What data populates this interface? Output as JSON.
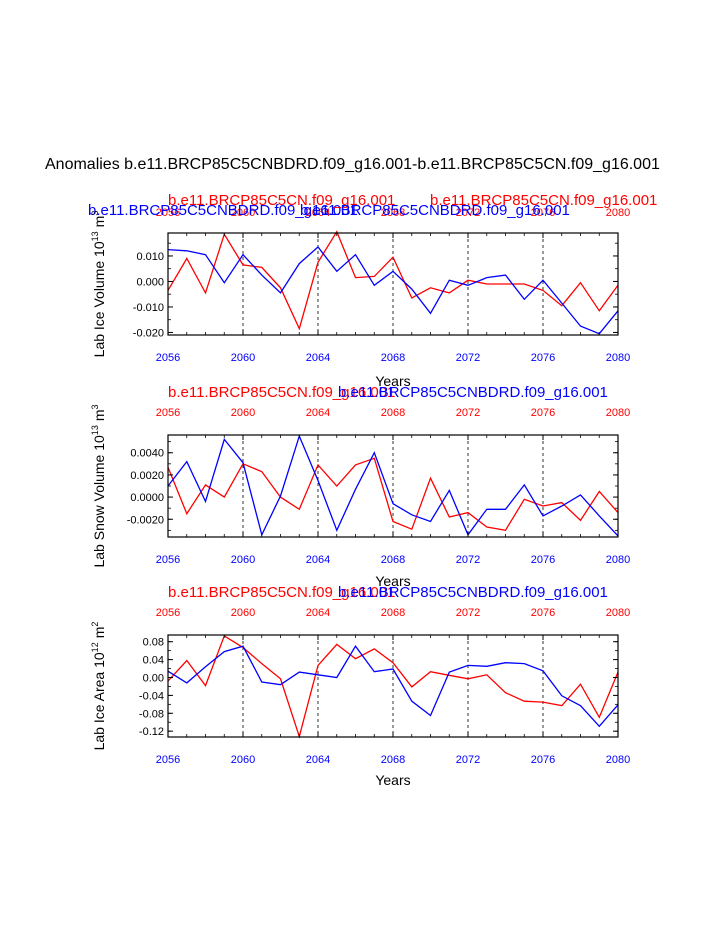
{
  "figure": {
    "title": "Anomalies b.e11.BRCP85C5CNBDRD.f09_g16.001-b.e11.BRCP85C5CN.f09_g16.001"
  },
  "colors": {
    "series_a": "#ff0000",
    "series_b": "#0000ff",
    "axis": "#000000"
  },
  "chart_data": [
    {
      "type": "line",
      "ylabel_text": "Lab Ice Volume 10",
      "ylabel_exp": "13",
      "ylabel_unit": "m",
      "ylabel_unit_exp": "3",
      "xlabel": "",
      "xlim": [
        2056,
        2080
      ],
      "ylim": [
        -0.021,
        0.019
      ],
      "yticks": [
        -0.02,
        -0.01,
        0.0,
        0.01
      ],
      "yticklabels": [
        "-0.020",
        "-0.010",
        "0.000",
        "0.010"
      ],
      "xticks": [
        2056,
        2060,
        2064,
        2068,
        2072,
        2076,
        2080
      ],
      "xticklabels": [
        "2056",
        "2060",
        "2064",
        "2068",
        "2072",
        "2076",
        "2080"
      ],
      "top_legend": [
        {
          "text": "b.e11.BRCP85C5CNBDRD.f09_g16.001",
          "color": "#0000ff"
        },
        {
          "text": "b.e11.BRCP85C5CN.f09_g16.001",
          "color": "#ff0000"
        },
        {
          "text": "b.e11.BRCP85C5CNBDRD.f09_g16.001",
          "color": "#0000ff"
        },
        {
          "text": "b.e11.BRCP85C5CN.f09_g16.001",
          "color": "#ff0000"
        }
      ],
      "x": [
        2056,
        2057,
        2058,
        2059,
        2060,
        2061,
        2062,
        2063,
        2064,
        2065,
        2066,
        2067,
        2068,
        2069,
        2070,
        2071,
        2072,
        2073,
        2074,
        2075,
        2076,
        2077,
        2078,
        2079,
        2080
      ],
      "series": [
        {
          "name": "b.e11.BRCP85C5CN.f09_g16.001",
          "color": "#ff0000",
          "values": [
            -0.0035,
            0.009,
            -0.0045,
            0.0185,
            0.0065,
            0.0055,
            -0.0025,
            -0.0185,
            0.0075,
            0.0195,
            0.0015,
            0.002,
            0.0095,
            -0.0065,
            -0.0025,
            -0.0045,
            0.0005,
            -0.001,
            -0.001,
            -0.001,
            -0.0035,
            -0.0095,
            -0.0005,
            -0.0115,
            -0.0015
          ]
        },
        {
          "name": "b.e11.BRCP85C5CNBDRD.f09_g16.001",
          "color": "#0000ff",
          "values": [
            0.0125,
            0.012,
            0.0105,
            -0.0005,
            0.0105,
            0.0025,
            -0.0045,
            0.007,
            0.0135,
            0.004,
            0.0105,
            -0.0015,
            0.004,
            -0.003,
            -0.0125,
            0.0005,
            -0.0015,
            0.0015,
            0.0025,
            -0.007,
            0.0005,
            -0.0085,
            -0.0175,
            -0.0205,
            -0.0115
          ]
        }
      ]
    },
    {
      "type": "line",
      "ylabel_text": "Lab Snow Volume 10",
      "ylabel_exp": "13",
      "ylabel_unit": "m",
      "ylabel_unit_exp": "3",
      "xlabel": "Years",
      "xlim": [
        2056,
        2080
      ],
      "ylim": [
        -0.0036,
        0.0056
      ],
      "yticks": [
        -0.002,
        0.0,
        0.002,
        0.004
      ],
      "yticklabels": [
        "-0.0020",
        "0.0000",
        "0.0020",
        "0.0040"
      ],
      "xticks": [
        2056,
        2060,
        2064,
        2068,
        2072,
        2076,
        2080
      ],
      "xticklabels": [
        "2056",
        "2060",
        "2064",
        "2068",
        "2072",
        "2076",
        "2080"
      ],
      "top_legend": [
        {
          "text": "b.e11.BRCP85C5CN.f09_g16.001",
          "color": "#ff0000"
        },
        {
          "text": "b.e11.BRCP85C5CNBDRD.f09_g16.001",
          "color": "#0000ff"
        }
      ],
      "x": [
        2056,
        2057,
        2058,
        2059,
        2060,
        2061,
        2062,
        2063,
        2064,
        2065,
        2066,
        2067,
        2068,
        2069,
        2070,
        2071,
        2072,
        2073,
        2074,
        2075,
        2076,
        2077,
        2078,
        2079,
        2080
      ],
      "series": [
        {
          "name": "b.e11.BRCP85C5CN.f09_g16.001",
          "color": "#ff0000",
          "values": [
            0.0027,
            -0.0015,
            0.0011,
            0.0,
            0.003,
            0.0023,
            0.0,
            -0.0011,
            0.0029,
            0.001,
            0.0029,
            0.0035,
            -0.0022,
            -0.0029,
            0.0017,
            -0.0018,
            -0.0014,
            -0.0027,
            -0.003,
            -0.0002,
            -0.0008,
            -0.0005,
            -0.0021,
            0.0005,
            -0.0014
          ]
        },
        {
          "name": "b.e11.BRCP85C5CNBDRD.f09_g16.001",
          "color": "#0000ff",
          "values": [
            0.001,
            0.0032,
            -0.0004,
            0.0052,
            0.0031,
            -0.0034,
            0.0001,
            0.0055,
            0.0015,
            -0.003,
            0.0007,
            0.004,
            -0.0006,
            -0.0016,
            -0.0022,
            0.0006,
            -0.0034,
            -0.0011,
            -0.0011,
            0.0011,
            -0.0017,
            -0.0008,
            0.0002,
            -0.0017,
            -0.0035
          ]
        }
      ]
    },
    {
      "type": "line",
      "ylabel_text": "Lab Ice Area 10",
      "ylabel_exp": "12",
      "ylabel_unit": "m",
      "ylabel_unit_exp": "2",
      "xlabel": "Years",
      "xlim": [
        2056,
        2080
      ],
      "ylim": [
        -0.133,
        0.095
      ],
      "yticks": [
        -0.12,
        -0.08,
        -0.04,
        0.0,
        0.04,
        0.08
      ],
      "yticklabels": [
        "-0.12",
        "-0.08",
        "-0.04",
        "0.00",
        "0.04",
        "0.08"
      ],
      "xticks": [
        2056,
        2060,
        2064,
        2068,
        2072,
        2076,
        2080
      ],
      "xticklabels": [
        "2056",
        "2060",
        "2064",
        "2068",
        "2072",
        "2076",
        "2080"
      ],
      "top_legend": [
        {
          "text": "b.e11.BRCP85C5CN.f09_g16.001",
          "color": "#ff0000"
        },
        {
          "text": "b.e11.BRCP85C5CNBDRD.f09_g16.001",
          "color": "#0000ff"
        }
      ],
      "x": [
        2056,
        2057,
        2058,
        2059,
        2060,
        2061,
        2062,
        2063,
        2064,
        2065,
        2066,
        2067,
        2068,
        2069,
        2070,
        2071,
        2072,
        2073,
        2074,
        2075,
        2076,
        2077,
        2078,
        2079,
        2080
      ],
      "series": [
        {
          "name": "b.e11.BRCP85C5CN.f09_g16.001",
          "color": "#ff0000",
          "values": [
            -0.008,
            0.038,
            -0.018,
            0.093,
            0.067,
            0.031,
            -0.003,
            -0.132,
            0.027,
            0.074,
            0.042,
            0.064,
            0.033,
            -0.021,
            0.013,
            0.005,
            -0.003,
            0.006,
            -0.034,
            -0.053,
            -0.055,
            -0.063,
            -0.015,
            -0.089,
            0.012
          ]
        },
        {
          "name": "b.e11.BRCP85C5CNBDRD.f09_g16.001",
          "color": "#0000ff",
          "values": [
            0.014,
            -0.012,
            0.024,
            0.058,
            0.07,
            -0.01,
            -0.016,
            0.012,
            0.006,
            0.0,
            0.07,
            0.013,
            0.019,
            -0.053,
            -0.085,
            0.012,
            0.027,
            0.025,
            0.033,
            0.031,
            0.015,
            -0.041,
            -0.063,
            -0.109,
            -0.061
          ]
        }
      ]
    }
  ]
}
